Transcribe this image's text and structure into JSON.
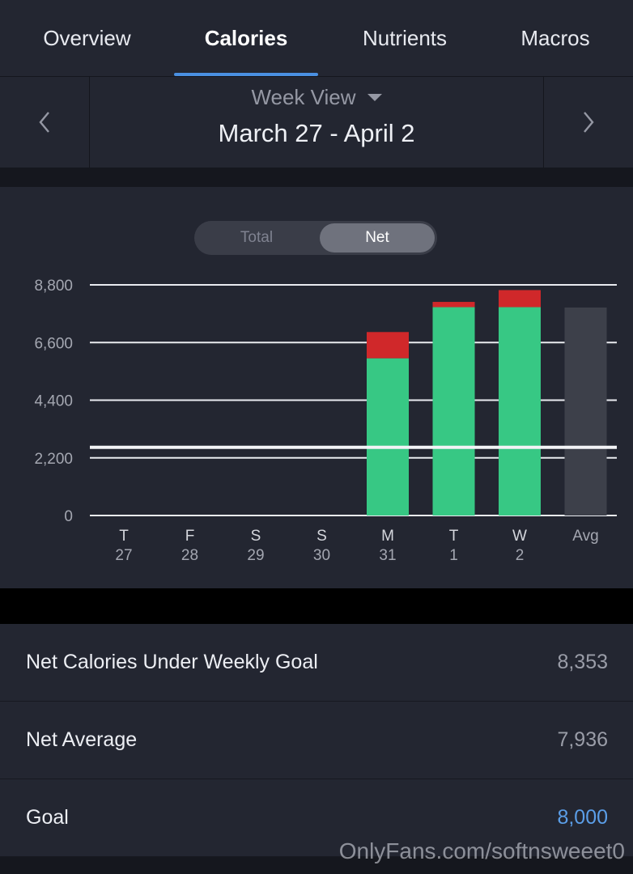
{
  "tabs": [
    {
      "label": "Overview",
      "active": false
    },
    {
      "label": "Calories",
      "active": true
    },
    {
      "label": "Nutrients",
      "active": false
    },
    {
      "label": "Macros",
      "active": false
    }
  ],
  "date_nav": {
    "view_label": "Week View",
    "range": "March 27 - April 2",
    "prev_icon": "chevron-left-icon",
    "next_icon": "chevron-right-icon"
  },
  "toggle": {
    "total_label": "Total",
    "net_label": "Net",
    "selected": "Net"
  },
  "chart_data": {
    "type": "bar",
    "stacked": true,
    "categories": [
      {
        "day": "T",
        "date": "27"
      },
      {
        "day": "F",
        "date": "28"
      },
      {
        "day": "S",
        "date": "29"
      },
      {
        "day": "S",
        "date": "30"
      },
      {
        "day": "M",
        "date": "31"
      },
      {
        "day": "T",
        "date": "1"
      },
      {
        "day": "W",
        "date": "2"
      },
      {
        "day": "Avg",
        "date": ""
      }
    ],
    "series": [
      {
        "values": [
          0,
          0,
          0,
          0,
          6000,
          7950,
          7950,
          0
        ],
        "color": "#37c884"
      },
      {
        "values": [
          0,
          0,
          0,
          0,
          1000,
          200,
          650,
          0
        ],
        "color": "#d0282a"
      },
      {
        "values": [
          0,
          0,
          0,
          0,
          0,
          0,
          0,
          7936
        ],
        "color": "#3d404a"
      }
    ],
    "y_ticks": [
      "8,800",
      "6,600",
      "4,400",
      "2,200",
      "0"
    ],
    "y_tick_values": [
      8800,
      6600,
      4400,
      2200,
      0
    ],
    "ylim": [
      0,
      8800
    ],
    "goal_line": 2600,
    "grid": true
  },
  "stats": [
    {
      "label": "Net Calories Under Weekly Goal",
      "value": "8,353",
      "highlight": false
    },
    {
      "label": "Net Average",
      "value": "7,936",
      "highlight": false
    },
    {
      "label": "Goal",
      "value": "8,000",
      "highlight": true
    }
  ],
  "watermark": "OnlyFans.com/softnsweeet0",
  "colors": {
    "accent": "#4a90e2",
    "goal_value": "#5b9ee8",
    "net_bar": "#37c884",
    "over_bar": "#d0282a"
  }
}
